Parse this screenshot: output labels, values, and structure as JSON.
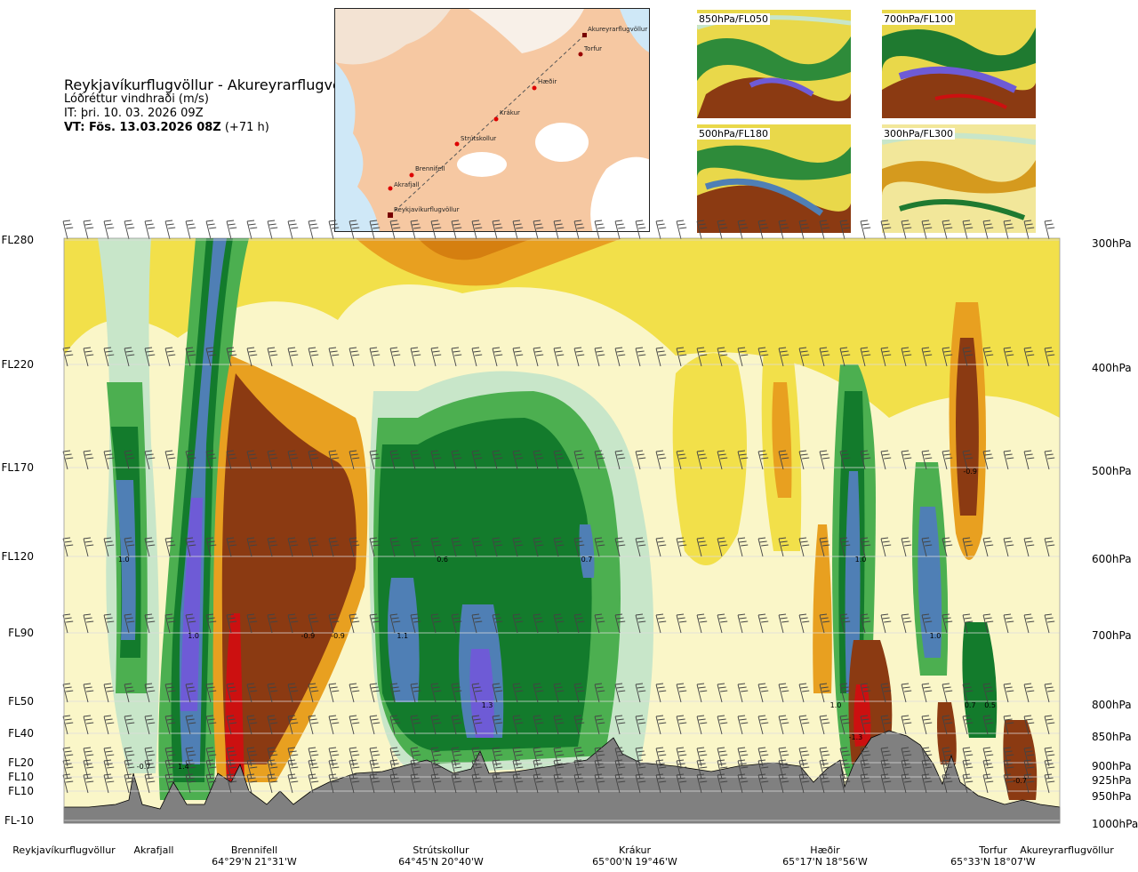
{
  "header": {
    "route": "Reykjavíkurflugvöllur - Akureyrarflugvöllur",
    "parameter": "Lóðréttur vindhraði (m/s)",
    "issue_time": "IT: þri. 10. 03. 2026 09Z",
    "valid_time_bold": "VT: Fös. 13.03.2026 08Z",
    "valid_offset": "(+71 h)"
  },
  "route_map": {
    "points": [
      "Reykjavíkurflugvöllur",
      "Akrafjall",
      "Brennifell",
      "Strútskollur",
      "Krákur",
      "Hæðir",
      "Torfur",
      "Akureyrarflugvöllur"
    ]
  },
  "mini_maps": [
    {
      "label": "850hPa/FL050"
    },
    {
      "label": "700hPa/FL100"
    },
    {
      "label": "500hPa/FL180"
    },
    {
      "label": "300hPa/FL300"
    }
  ],
  "colors": {
    "strong_down": "#8B3A12",
    "down": "#E8A020",
    "weak_down": "#F2E04A",
    "neutral": "#FAF6C8",
    "weak_up": "#C8E6C9",
    "up": "#4CAF50",
    "strong_up": "#137B2C",
    "very_strong_up": "#4F7FB5",
    "extreme_up": "#6E5BD6",
    "extreme_down": "#CC1010",
    "terrain": "#808080"
  },
  "chart_data": {
    "type": "heatmap",
    "x_label_stations": [
      {
        "name": "Reykjavíkurflugvöllur",
        "coord": ""
      },
      {
        "name": "Akrafjall",
        "coord": ""
      },
      {
        "name": "Brennifell",
        "coord": "64°29'N 21°31'W"
      },
      {
        "name": "Strútskollur",
        "coord": "64°45'N 20°40'W"
      },
      {
        "name": "Krákur",
        "coord": "65°00'N 19°46'W"
      },
      {
        "name": "Hæðir",
        "coord": "65°17'N 18°56'W"
      },
      {
        "name": "Torfur",
        "coord": "65°33'N 18°07'W"
      },
      {
        "name": "Akureyrarflugvöllur",
        "coord": ""
      }
    ],
    "y_left_flight_levels": [
      "FL280",
      "FL220",
      "FL170",
      "FL120",
      "FL90",
      "FL50",
      "FL40",
      "FL20",
      "FL10",
      "FL10",
      "FL-10"
    ],
    "y_right_pressure_levels": [
      "300hPa",
      "400hPa",
      "500hPa",
      "600hPa",
      "700hPa",
      "800hPa",
      "850hPa",
      "900hPa",
      "925hPa",
      "950hPa",
      "1000hPa"
    ],
    "data_labels": [
      {
        "text": "1.0",
        "station_frac": 0.06,
        "level": "600hPa"
      },
      {
        "text": "1.0",
        "station_frac": 0.13,
        "level": "700hPa"
      },
      {
        "text": "1.4",
        "station_frac": 0.12,
        "level": "900hPa"
      },
      {
        "text": "-0.7",
        "station_frac": 0.08,
        "level": "900hPa"
      },
      {
        "text": "-0.9",
        "station_frac": 0.245,
        "level": "700hPa"
      },
      {
        "text": "-0.9",
        "station_frac": 0.275,
        "level": "700hPa"
      },
      {
        "text": "1.1",
        "station_frac": 0.34,
        "level": "700hPa"
      },
      {
        "text": "0.6",
        "station_frac": 0.38,
        "level": "600hPa"
      },
      {
        "text": "1.3",
        "station_frac": 0.425,
        "level": "800hPa"
      },
      {
        "text": "0.7",
        "station_frac": 0.525,
        "level": "600hPa"
      },
      {
        "text": "1.0",
        "station_frac": 0.8,
        "level": "600hPa"
      },
      {
        "text": "1.0",
        "station_frac": 0.775,
        "level": "800hPa"
      },
      {
        "text": "-1.3",
        "station_frac": 0.795,
        "level": "850hPa"
      },
      {
        "text": "1.0",
        "station_frac": 0.875,
        "level": "700hPa"
      },
      {
        "text": "0.7",
        "station_frac": 0.91,
        "level": "800hPa"
      },
      {
        "text": "0.5",
        "station_frac": 0.93,
        "level": "800hPa"
      },
      {
        "text": "-0.9",
        "station_frac": 0.91,
        "level": "500hPa"
      },
      {
        "text": "-0.7",
        "station_frac": 0.96,
        "level": "925hPa"
      }
    ]
  }
}
